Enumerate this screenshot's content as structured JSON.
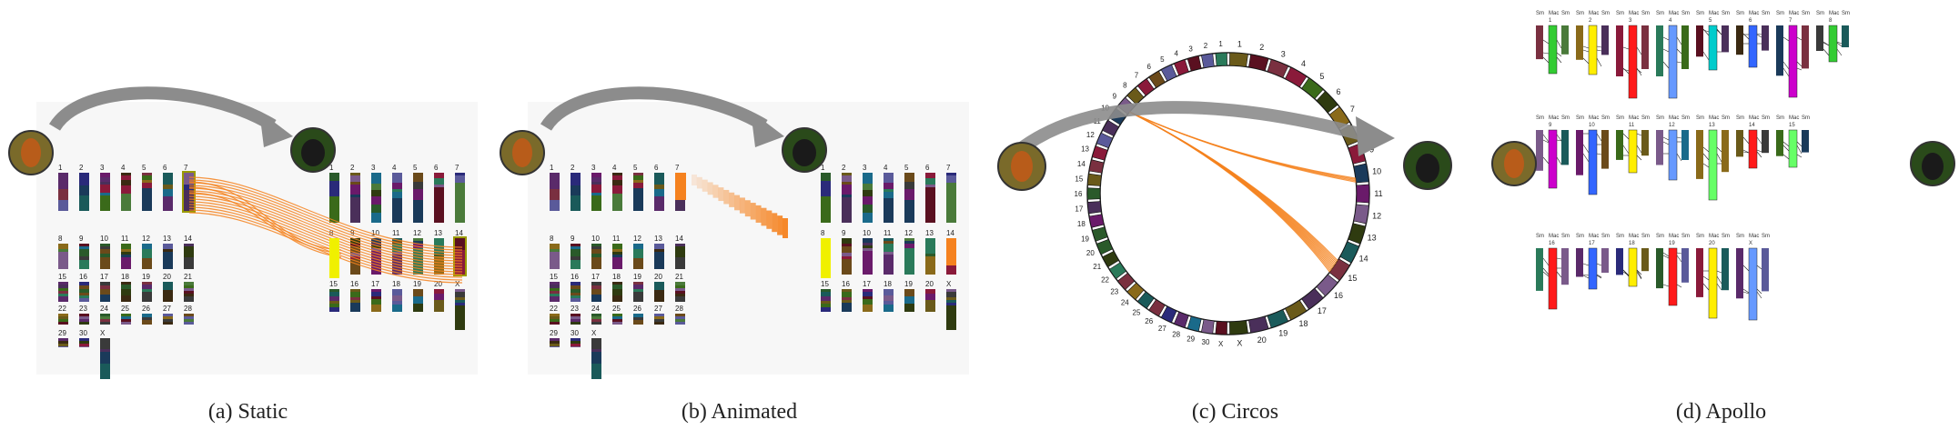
{
  "panels": [
    {
      "id": "static",
      "caption": "(a) Static",
      "chromosomes_left": [
        "1",
        "2",
        "3",
        "4",
        "5",
        "6",
        "7",
        "8",
        "9",
        "10",
        "11",
        "12",
        "13",
        "14",
        "15",
        "16",
        "17",
        "18",
        "19",
        "20",
        "21",
        "22",
        "23",
        "24",
        "25",
        "26",
        "27",
        "28",
        "29",
        "30",
        "X"
      ],
      "chromosomes_right": [
        "1",
        "2",
        "3",
        "4",
        "5",
        "6",
        "7",
        "8",
        "9",
        "10",
        "11",
        "12",
        "13",
        "14",
        "15",
        "16",
        "17",
        "18",
        "19",
        "20",
        "X"
      ]
    },
    {
      "id": "animated",
      "caption": "(b) Animated",
      "chromosomes_left": [
        "1",
        "2",
        "3",
        "4",
        "5",
        "6",
        "7",
        "8",
        "9",
        "10",
        "11",
        "12",
        "13",
        "14",
        "15",
        "16",
        "17",
        "18",
        "19",
        "20",
        "21",
        "22",
        "23",
        "24",
        "25",
        "26",
        "27",
        "28",
        "29",
        "30",
        "X"
      ],
      "chromosomes_right": [
        "1",
        "2",
        "3",
        "4",
        "5",
        "6",
        "7",
        "8",
        "9",
        "10",
        "11",
        "12",
        "13",
        "14",
        "15",
        "16",
        "17",
        "18",
        "19",
        "20",
        "X"
      ]
    },
    {
      "id": "circos",
      "caption": "(c) Circos",
      "ring_labels_left": [
        "1",
        "2",
        "3",
        "4",
        "5",
        "6",
        "7",
        "8",
        "9",
        "10",
        "11",
        "12",
        "13",
        "14",
        "15",
        "16",
        "17",
        "18",
        "19",
        "20",
        "21",
        "22",
        "23",
        "24",
        "25",
        "26",
        "27",
        "28",
        "29",
        "30",
        "X"
      ],
      "ring_labels_right": [
        "1",
        "2",
        "3",
        "4",
        "5",
        "6",
        "7",
        "8",
        "9",
        "10",
        "11",
        "12",
        "13",
        "14",
        "15",
        "16",
        "17",
        "18",
        "19",
        "20",
        "X"
      ]
    },
    {
      "id": "apollo",
      "caption": "(d) Apollo",
      "column_headers": [
        "Sm",
        "Mac",
        "Sm"
      ],
      "chromosome_numbers": [
        "1",
        "2",
        "3",
        "4",
        "5",
        "6",
        "7",
        "8",
        "9",
        "10",
        "11",
        "12",
        "13",
        "14",
        "15",
        "16",
        "17",
        "18",
        "19",
        "20",
        "X"
      ]
    }
  ],
  "colors": {
    "highlight": "#f5821f",
    "arrow": "#8c8c8c",
    "yellow": "#f0f000"
  }
}
